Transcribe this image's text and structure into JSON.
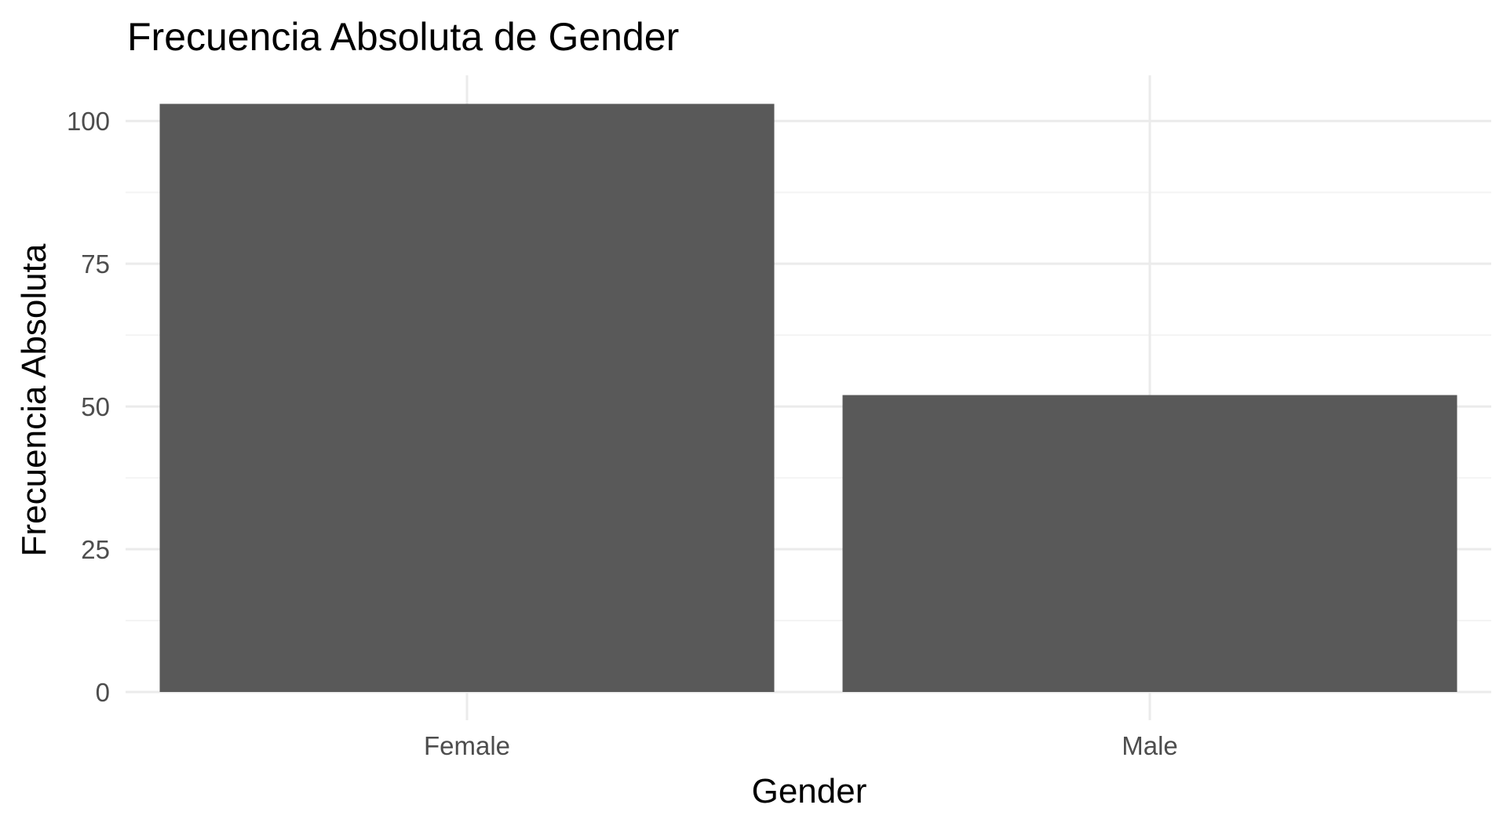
{
  "chart_data": {
    "type": "bar",
    "title": "Frecuencia Absoluta de Gender",
    "xlabel": "Gender",
    "ylabel": "Frecuencia Absoluta",
    "categories": [
      "Female",
      "Male"
    ],
    "values": [
      103,
      52
    ],
    "ylim": [
      0,
      108
    ],
    "yticks": [
      0,
      25,
      50,
      75,
      100
    ],
    "y_minor_ticks": [
      12.5,
      37.5,
      62.5,
      87.5
    ],
    "grid": true,
    "legend": "none",
    "colors": {
      "bar": "#595959",
      "grid_major": "#ebebeb",
      "grid_minor": "#f4f4f4",
      "tick_text": "#4d4d4d",
      "title_text": "#000000"
    }
  }
}
